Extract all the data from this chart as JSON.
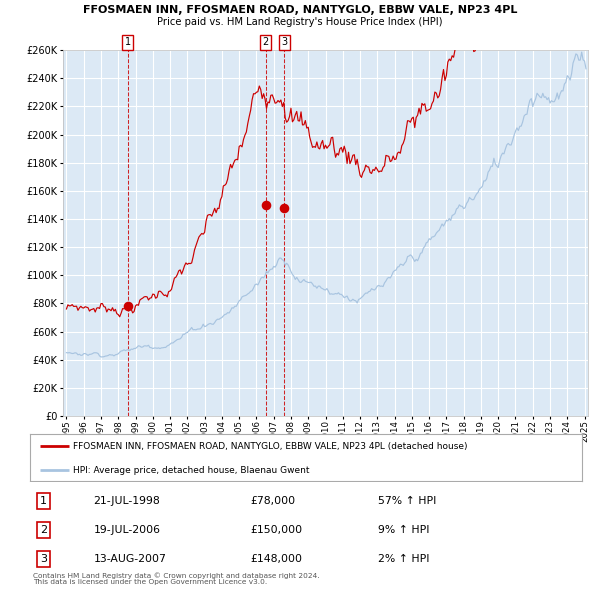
{
  "title1": "FFOSMAEN INN, FFOSMAEN ROAD, NANTYGLO, EBBW VALE, NP23 4PL",
  "title2": "Price paid vs. HM Land Registry's House Price Index (HPI)",
  "legend_line1": "FFOSMAEN INN, FFOSMAEN ROAD, NANTYGLO, EBBW VALE, NP23 4PL (detached house)",
  "legend_line2": "HPI: Average price, detached house, Blaenau Gwent",
  "footnote1": "Contains HM Land Registry data © Crown copyright and database right 2024.",
  "footnote2": "This data is licensed under the Open Government Licence v3.0.",
  "sales": [
    {
      "num": 1,
      "date": "21-JUL-1998",
      "price": 78000,
      "pct": "57%",
      "dir": "↑"
    },
    {
      "num": 2,
      "date": "19-JUL-2006",
      "price": 150000,
      "pct": "9%",
      "dir": "↑"
    },
    {
      "num": 3,
      "date": "13-AUG-2007",
      "price": 148000,
      "pct": "2%",
      "dir": "↑"
    }
  ],
  "sale_dates_decimal": [
    1998.547,
    2006.542,
    2007.622
  ],
  "sale_prices": [
    78000,
    150000,
    148000
  ],
  "ylim": [
    0,
    260000
  ],
  "yticks": [
    0,
    20000,
    40000,
    60000,
    80000,
    100000,
    120000,
    140000,
    160000,
    180000,
    200000,
    220000,
    240000,
    260000
  ],
  "background_color": "#dce9f5",
  "red_line_color": "#cc0000",
  "blue_line_color": "#a8c4e0",
  "grid_color": "#ffffff",
  "dashed_color": "#cc0000",
  "start_year": 1995,
  "end_year": 2025
}
